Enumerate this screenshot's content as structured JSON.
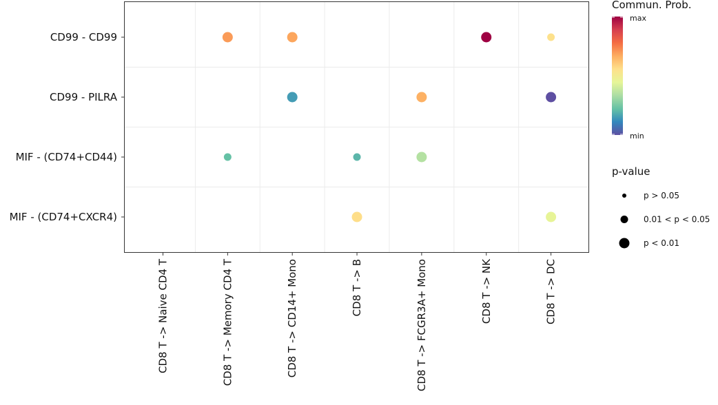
{
  "chart_data": {
    "type": "bubble-dotplot",
    "x_categories": [
      "CD8 T -> Naive CD4 T",
      "CD8 T -> Memory CD4 T",
      "CD8 T -> CD14+ Mono",
      "CD8 T -> B",
      "CD8 T -> FCGR3A+ Mono",
      "CD8 T -> NK",
      "CD8 T -> DC"
    ],
    "y_categories": [
      "CD99 - CD99",
      "CD99 - PILRA",
      "MIF - (CD74+CD44)",
      "MIF - (CD74+CXCR4)"
    ],
    "points": [
      {
        "x": "CD8 T -> Memory CD4 T",
        "y": "CD99 - CD99",
        "prob": 0.7,
        "pval_class": 3
      },
      {
        "x": "CD8 T -> CD14+ Mono",
        "y": "CD99 - CD99",
        "prob": 0.68,
        "pval_class": 3
      },
      {
        "x": "CD8 T -> NK",
        "y": "CD99 - CD99",
        "prob": 1.0,
        "pval_class": 3
      },
      {
        "x": "CD8 T -> DC",
        "y": "CD99 - CD99",
        "prob": 0.55,
        "pval_class": 2
      },
      {
        "x": "CD8 T -> CD14+ Mono",
        "y": "CD99 - PILRA",
        "prob": 0.15,
        "pval_class": 3
      },
      {
        "x": "CD8 T -> FCGR3A+ Mono",
        "y": "CD99 - PILRA",
        "prob": 0.66,
        "pval_class": 3
      },
      {
        "x": "CD8 T -> DC",
        "y": "CD99 - PILRA",
        "prob": 0.0,
        "pval_class": 3
      },
      {
        "x": "CD8 T -> Memory CD4 T",
        "y": "MIF - (CD74+CD44)",
        "prob": 0.22,
        "pval_class": 2
      },
      {
        "x": "CD8 T -> B",
        "y": "MIF - (CD74+CD44)",
        "prob": 0.2,
        "pval_class": 2
      },
      {
        "x": "CD8 T -> FCGR3A+ Mono",
        "y": "MIF - (CD74+CD44)",
        "prob": 0.35,
        "pval_class": 3
      },
      {
        "x": "CD8 T -> B",
        "y": "MIF - (CD74+CXCR4)",
        "prob": 0.56,
        "pval_class": 3
      },
      {
        "x": "CD8 T -> DC",
        "y": "MIF - (CD74+CXCR4)",
        "prob": 0.45,
        "pval_class": 3
      }
    ],
    "color_scale": [
      "#5e4fa2",
      "#3288bd",
      "#66c2a5",
      "#abdda4",
      "#e6f598",
      "#fee08b",
      "#fdae61",
      "#f46d43",
      "#d53e4f",
      "#9e0142"
    ],
    "colorbar": {
      "title": "Commun. Prob.",
      "max_label": "max",
      "min_label": "min"
    },
    "size_legend": {
      "title": "p-value",
      "items": [
        {
          "label": "p > 0.05",
          "pval_class": 1
        },
        {
          "label": "0.01 < p < 0.05",
          "pval_class": 2
        },
        {
          "label": "p < 0.01",
          "pval_class": 3
        }
      ]
    }
  }
}
